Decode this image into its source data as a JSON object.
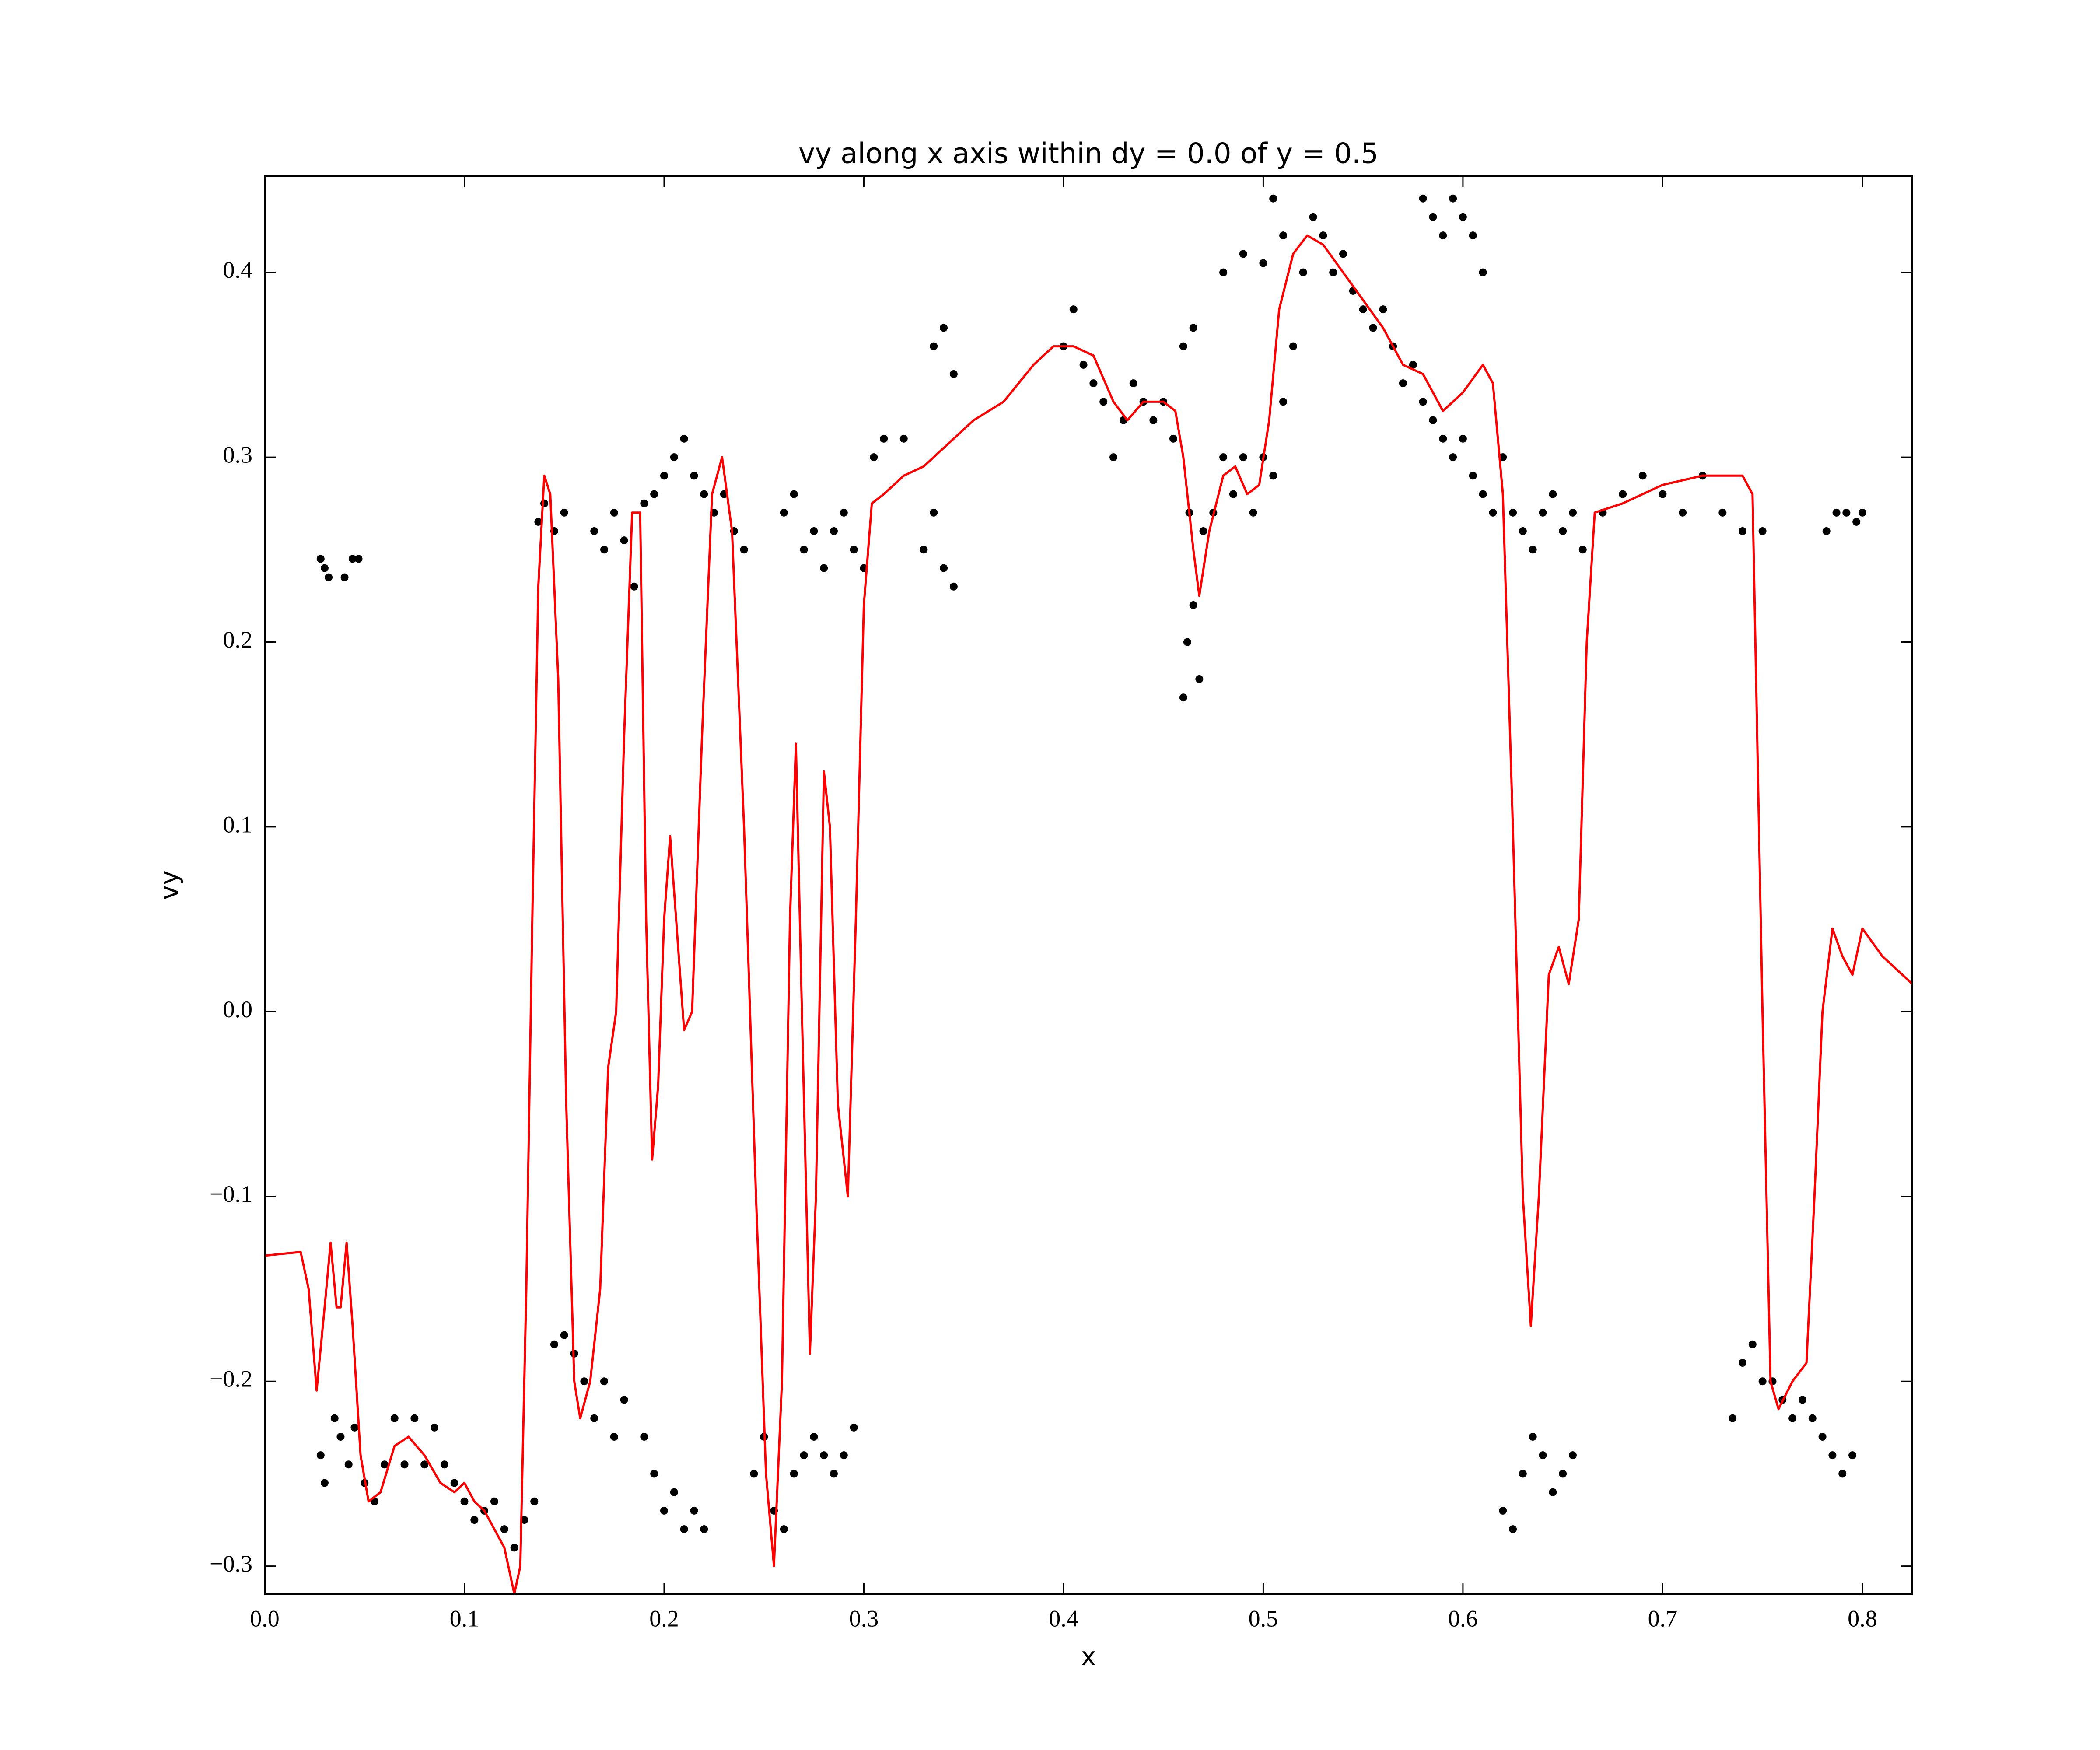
{
  "chart_data": {
    "type": "scatter",
    "title": "vy along x axis within dy = 0.0 of y = 0.5",
    "xlabel": "x",
    "ylabel": "vy",
    "xlim": [
      0,
      0.825
    ],
    "ylim": [
      -0.315,
      0.452
    ],
    "xticks": [
      {
        "value": 0,
        "label": "0.0"
      },
      0.1,
      0.2,
      0.3,
      0.4,
      0.5,
      0.6,
      0.7,
      0.8
    ],
    "yticks": [
      {
        "value": -0.3,
        "label": "−0.3"
      },
      {
        "value": -0.2,
        "label": "−0.2"
      },
      {
        "value": -0.1,
        "label": "−0.1"
      },
      {
        "value": 0,
        "label": "0.0"
      },
      0.1,
      0.2,
      0.3,
      0.4
    ],
    "series": [
      {
        "type": "scatter",
        "color": "#000000",
        "x": [
          0.028,
          0.03,
          0.032,
          0.04,
          0.044,
          0.047,
          0.028,
          0.03,
          0.035,
          0.038,
          0.042,
          0.045,
          0.05,
          0.055,
          0.06,
          0.065,
          0.07,
          0.075,
          0.08,
          0.085,
          0.09,
          0.095,
          0.1,
          0.105,
          0.11,
          0.115,
          0.12,
          0.125,
          0.13,
          0.135,
          0.137,
          0.14,
          0.145,
          0.15,
          0.145,
          0.15,
          0.155,
          0.16,
          0.165,
          0.17,
          0.175,
          0.18,
          0.165,
          0.17,
          0.175,
          0.18,
          0.185,
          0.19,
          0.195,
          0.2,
          0.205,
          0.21,
          0.215,
          0.22,
          0.225,
          0.23,
          0.235,
          0.24,
          0.19,
          0.195,
          0.2,
          0.205,
          0.21,
          0.215,
          0.22,
          0.245,
          0.25,
          0.255,
          0.26,
          0.265,
          0.27,
          0.275,
          0.28,
          0.285,
          0.29,
          0.295,
          0.26,
          0.265,
          0.27,
          0.275,
          0.28,
          0.285,
          0.29,
          0.295,
          0.3,
          0.305,
          0.31,
          0.32,
          0.33,
          0.335,
          0.34,
          0.345,
          0.335,
          0.34,
          0.345,
          0.4,
          0.405,
          0.41,
          0.415,
          0.42,
          0.425,
          0.43,
          0.435,
          0.44,
          0.445,
          0.45,
          0.455,
          0.46,
          0.463,
          0.462,
          0.46,
          0.465,
          0.468,
          0.47,
          0.465,
          0.475,
          0.48,
          0.485,
          0.49,
          0.495,
          0.5,
          0.505,
          0.51,
          0.48,
          0.49,
          0.5,
          0.505,
          0.51,
          0.515,
          0.52,
          0.525,
          0.53,
          0.535,
          0.54,
          0.545,
          0.55,
          0.555,
          0.56,
          0.565,
          0.57,
          0.575,
          0.58,
          0.585,
          0.59,
          0.595,
          0.6,
          0.605,
          0.61,
          0.615,
          0.62,
          0.58,
          0.585,
          0.59,
          0.595,
          0.6,
          0.605,
          0.61,
          0.625,
          0.63,
          0.635,
          0.64,
          0.645,
          0.65,
          0.655,
          0.66,
          0.62,
          0.625,
          0.63,
          0.635,
          0.64,
          0.645,
          0.65,
          0.655,
          0.67,
          0.68,
          0.69,
          0.7,
          0.71,
          0.72,
          0.73,
          0.74,
          0.75,
          0.735,
          0.74,
          0.745,
          0.75,
          0.755,
          0.76,
          0.765,
          0.77,
          0.775,
          0.78,
          0.785,
          0.79,
          0.795,
          0.782,
          0.787,
          0.792,
          0.797,
          0.8
        ],
        "y": [
          0.245,
          0.24,
          0.235,
          0.235,
          0.245,
          0.245,
          -0.24,
          -0.255,
          -0.22,
          -0.23,
          -0.245,
          -0.225,
          -0.255,
          -0.265,
          -0.245,
          -0.22,
          -0.245,
          -0.22,
          -0.245,
          -0.225,
          -0.245,
          -0.255,
          -0.265,
          -0.275,
          -0.27,
          -0.265,
          -0.28,
          -0.29,
          -0.275,
          -0.265,
          0.265,
          0.275,
          0.26,
          0.27,
          -0.18,
          -0.175,
          -0.185,
          -0.2,
          -0.22,
          -0.2,
          -0.23,
          -0.21,
          0.26,
          0.25,
          0.27,
          0.255,
          0.23,
          0.275,
          0.28,
          0.29,
          0.3,
          0.31,
          0.29,
          0.28,
          0.27,
          0.28,
          0.26,
          0.25,
          -0.23,
          -0.25,
          -0.27,
          -0.26,
          -0.28,
          -0.27,
          -0.28,
          -0.25,
          -0.23,
          -0.27,
          -0.28,
          -0.25,
          -0.24,
          -0.23,
          -0.24,
          -0.25,
          -0.24,
          -0.225,
          0.27,
          0.28,
          0.25,
          0.26,
          0.24,
          0.26,
          0.27,
          0.25,
          0.24,
          0.3,
          0.31,
          0.31,
          0.25,
          0.27,
          0.24,
          0.23,
          0.36,
          0.37,
          0.345,
          0.36,
          0.38,
          0.35,
          0.34,
          0.33,
          0.3,
          0.32,
          0.34,
          0.33,
          0.32,
          0.33,
          0.31,
          0.36,
          0.27,
          0.2,
          0.17,
          0.22,
          0.18,
          0.26,
          0.37,
          0.27,
          0.3,
          0.28,
          0.3,
          0.27,
          0.3,
          0.29,
          0.33,
          0.4,
          0.41,
          0.405,
          0.44,
          0.42,
          0.36,
          0.4,
          0.43,
          0.42,
          0.4,
          0.41,
          0.39,
          0.38,
          0.37,
          0.38,
          0.36,
          0.34,
          0.35,
          0.33,
          0.32,
          0.31,
          0.3,
          0.31,
          0.29,
          0.28,
          0.27,
          0.3,
          0.44,
          0.43,
          0.42,
          0.44,
          0.43,
          0.42,
          0.4,
          0.27,
          0.26,
          0.25,
          0.27,
          0.28,
          0.26,
          0.27,
          0.25,
          -0.27,
          -0.28,
          -0.25,
          -0.23,
          -0.24,
          -0.26,
          -0.25,
          -0.24,
          0.27,
          0.28,
          0.29,
          0.28,
          0.27,
          0.29,
          0.27,
          0.26,
          0.26,
          -0.22,
          -0.19,
          -0.18,
          -0.2,
          -0.2,
          -0.21,
          -0.22,
          -0.21,
          -0.22,
          -0.23,
          -0.24,
          -0.25,
          -0.24,
          0.26,
          0.27,
          0.27,
          0.265,
          0.27
        ]
      },
      {
        "type": "line",
        "color": "#ff0000",
        "x": [
          0,
          0.018,
          0.022,
          0.026,
          0.03,
          0.033,
          0.036,
          0.038,
          0.041,
          0.044,
          0.048,
          0.052,
          0.058,
          0.065,
          0.072,
          0.08,
          0.088,
          0.095,
          0.1,
          0.105,
          0.11,
          0.115,
          0.12,
          0.125,
          0.128,
          0.131,
          0.134,
          0.137,
          0.14,
          0.143,
          0.147,
          0.151,
          0.155,
          0.158,
          0.163,
          0.168,
          0.172,
          0.176,
          0.18,
          0.184,
          0.188,
          0.191,
          0.194,
          0.197,
          0.2,
          0.203,
          0.206,
          0.21,
          0.214,
          0.219,
          0.224,
          0.229,
          0.234,
          0.24,
          0.246,
          0.251,
          0.255,
          0.259,
          0.263,
          0.266,
          0.269,
          0.273,
          0.276,
          0.28,
          0.283,
          0.287,
          0.292,
          0.296,
          0.3,
          0.304,
          0.31,
          0.32,
          0.33,
          0.345,
          0.355,
          0.37,
          0.385,
          0.395,
          0.405,
          0.415,
          0.425,
          0.432,
          0.44,
          0.45,
          0.456,
          0.46,
          0.465,
          0.468,
          0.473,
          0.48,
          0.486,
          0.492,
          0.498,
          0.503,
          0.508,
          0.515,
          0.522,
          0.53,
          0.54,
          0.55,
          0.56,
          0.57,
          0.58,
          0.59,
          0.6,
          0.61,
          0.615,
          0.62,
          0.625,
          0.63,
          0.634,
          0.638,
          0.643,
          0.648,
          0.653,
          0.658,
          0.662,
          0.666,
          0.68,
          0.7,
          0.72,
          0.74,
          0.745,
          0.75,
          0.754,
          0.758,
          0.765,
          0.772,
          0.776,
          0.78,
          0.785,
          0.79,
          0.795,
          0.8,
          0.81,
          0.825
        ],
        "y": [
          -0.132,
          -0.13,
          -0.15,
          -0.205,
          -0.16,
          -0.125,
          -0.16,
          -0.16,
          -0.125,
          -0.17,
          -0.24,
          -0.265,
          -0.26,
          -0.235,
          -0.23,
          -0.24,
          -0.255,
          -0.26,
          -0.255,
          -0.265,
          -0.27,
          -0.28,
          -0.29,
          -0.315,
          -0.3,
          -0.15,
          0.05,
          0.23,
          0.29,
          0.28,
          0.18,
          -0.05,
          -0.2,
          -0.22,
          -0.2,
          -0.15,
          -0.03,
          0.0,
          0.15,
          0.27,
          0.27,
          0.05,
          -0.08,
          -0.04,
          0.05,
          0.095,
          0.05,
          -0.01,
          0.0,
          0.15,
          0.28,
          0.3,
          0.26,
          0.1,
          -0.1,
          -0.25,
          -0.3,
          -0.2,
          0.05,
          0.145,
          0.0,
          -0.185,
          -0.1,
          0.13,
          0.1,
          -0.05,
          -0.1,
          0.05,
          0.22,
          0.275,
          0.28,
          0.29,
          0.295,
          0.31,
          0.32,
          0.33,
          0.35,
          0.36,
          0.36,
          0.355,
          0.33,
          0.32,
          0.33,
          0.33,
          0.325,
          0.3,
          0.25,
          0.225,
          0.26,
          0.29,
          0.295,
          0.28,
          0.285,
          0.32,
          0.38,
          0.41,
          0.42,
          0.415,
          0.4,
          0.385,
          0.37,
          0.35,
          0.345,
          0.325,
          0.335,
          0.35,
          0.34,
          0.28,
          0.1,
          -0.1,
          -0.17,
          -0.1,
          0.02,
          0.035,
          0.015,
          0.05,
          0.2,
          0.27,
          0.275,
          0.285,
          0.29,
          0.29,
          0.28,
          0.0,
          -0.2,
          -0.215,
          -0.2,
          -0.19,
          -0.1,
          0.0,
          0.045,
          0.03,
          0.02,
          0.045,
          0.03,
          0.015
        ]
      }
    ]
  }
}
